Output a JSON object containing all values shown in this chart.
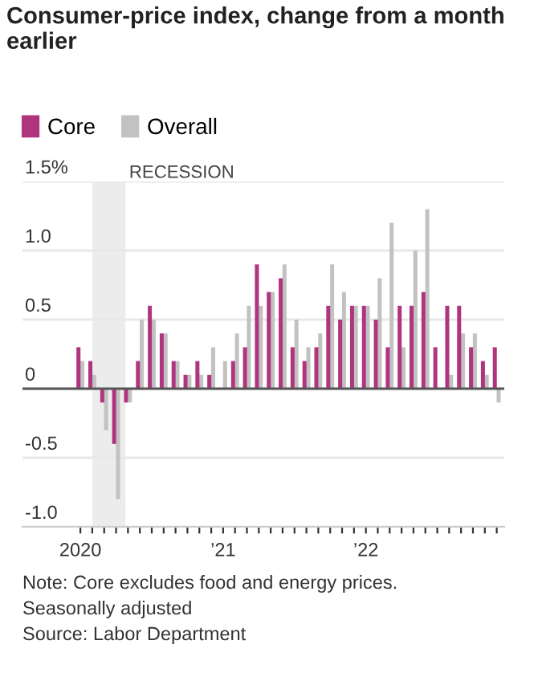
{
  "chart_data": {
    "type": "bar",
    "title": "Consumer-price index, change from a month earlier",
    "x": [
      "2020-01",
      "2020-02",
      "2020-03",
      "2020-04",
      "2020-05",
      "2020-06",
      "2020-07",
      "2020-08",
      "2020-09",
      "2020-10",
      "2020-11",
      "2020-12",
      "2021-01",
      "2021-02",
      "2021-03",
      "2021-04",
      "2021-05",
      "2021-06",
      "2021-07",
      "2021-08",
      "2021-09",
      "2021-10",
      "2021-11",
      "2021-12",
      "2022-01",
      "2022-02",
      "2022-03",
      "2022-04",
      "2022-05",
      "2022-06",
      "2022-07",
      "2022-08",
      "2022-09",
      "2022-10",
      "2022-11",
      "2022-12"
    ],
    "series": [
      {
        "name": "Core",
        "color": "#b0357f",
        "values": [
          0.3,
          0.2,
          -0.1,
          -0.4,
          -0.1,
          0.2,
          0.6,
          0.4,
          0.2,
          0.1,
          0.2,
          0.1,
          0.0,
          0.2,
          0.3,
          0.9,
          0.7,
          0.8,
          0.3,
          0.2,
          0.3,
          0.6,
          0.5,
          0.6,
          0.6,
          0.5,
          0.3,
          0.6,
          0.6,
          0.7,
          0.3,
          0.6,
          0.6,
          0.3,
          0.2,
          0.3
        ]
      },
      {
        "name": "Overall",
        "color": "#c2c2c2",
        "values": [
          0.2,
          0.1,
          -0.3,
          -0.8,
          -0.1,
          0.5,
          0.5,
          0.4,
          0.2,
          0.1,
          0.1,
          0.3,
          0.2,
          0.4,
          0.6,
          0.6,
          0.7,
          0.9,
          0.5,
          0.3,
          0.4,
          0.9,
          0.7,
          0.6,
          0.6,
          0.8,
          1.2,
          0.3,
          1.0,
          1.3,
          0.0,
          0.1,
          0.4,
          0.4,
          0.1,
          -0.1
        ]
      }
    ],
    "xlim": [
      "2019-08-05",
      "2022-12-20"
    ],
    "xticks": [
      {
        "value": "2020-01",
        "label": "2020"
      },
      {
        "value": "2020-02",
        "label": null
      },
      {
        "value": "2020-03",
        "label": null
      },
      {
        "value": "2020-04",
        "label": null
      },
      {
        "value": "2020-05",
        "label": null
      },
      {
        "value": "2020-06",
        "label": null
      },
      {
        "value": "2020-07",
        "label": null
      },
      {
        "value": "2020-08",
        "label": null
      },
      {
        "value": "2020-09",
        "label": null
      },
      {
        "value": "2020-10",
        "label": null
      },
      {
        "value": "2020-11",
        "label": null
      },
      {
        "value": "2020-12",
        "label": null
      },
      {
        "value": "2021-01",
        "label": "’21"
      },
      {
        "value": "2021-02",
        "label": null
      },
      {
        "value": "2021-03",
        "label": null
      },
      {
        "value": "2021-04",
        "label": null
      },
      {
        "value": "2021-05",
        "label": null
      },
      {
        "value": "2021-06",
        "label": null
      },
      {
        "value": "2021-07",
        "label": null
      },
      {
        "value": "2021-08",
        "label": null
      },
      {
        "value": "2021-09",
        "label": null
      },
      {
        "value": "2021-10",
        "label": null
      },
      {
        "value": "2021-11",
        "label": null
      },
      {
        "value": "2021-12",
        "label": null
      },
      {
        "value": "2022-01",
        "label": "’22"
      },
      {
        "value": "2022-02",
        "label": null
      },
      {
        "value": "2022-03",
        "label": null
      },
      {
        "value": "2022-04",
        "label": null
      },
      {
        "value": "2022-05",
        "label": null
      },
      {
        "value": "2022-06",
        "label": null
      },
      {
        "value": "2022-07",
        "label": null
      },
      {
        "value": "2022-08",
        "label": null
      },
      {
        "value": "2022-09",
        "label": null
      },
      {
        "value": "2022-10",
        "label": null
      },
      {
        "value": "2022-11",
        "label": null
      },
      {
        "value": "2022-12",
        "label": null
      }
    ],
    "ylim": [
      -1.0,
      1.5
    ],
    "yticks": [
      {
        "value": 1.5,
        "label": "1.5%"
      },
      {
        "value": 1.0,
        "label": "1.0"
      },
      {
        "value": 0.5,
        "label": "0.5"
      },
      0,
      {
        "value": -0.5,
        "label": "-0.5"
      },
      {
        "value": -1.0,
        "label": "-1.0"
      }
    ],
    "bands": [
      {
        "axis": "x",
        "from": "2020-02-01",
        "to": "2020-04-25",
        "label": "RECESSION",
        "color": "#ececec"
      }
    ],
    "grid": "y",
    "legend": "top left",
    "annotations": [
      "Note: Core excludes food and energy prices.",
      "Seasonally adjusted",
      "Source: Labor Department"
    ]
  }
}
